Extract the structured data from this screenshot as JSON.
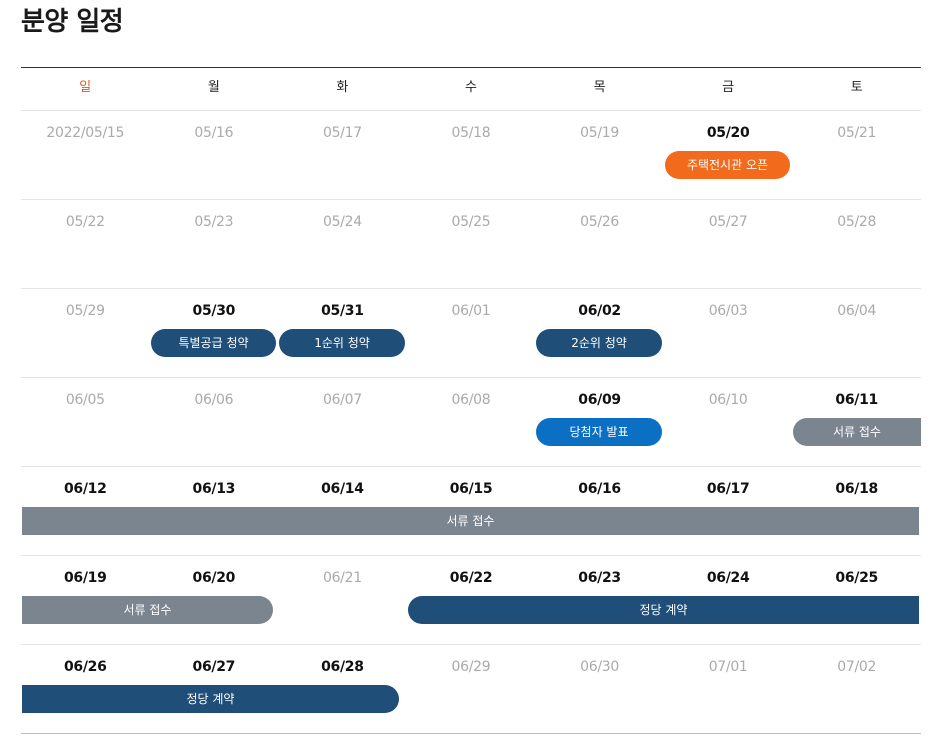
{
  "page_title": "분양 일정",
  "weekdays": [
    "일",
    "월",
    "화",
    "수",
    "목",
    "금",
    "토"
  ],
  "colors": {
    "sunday": "#e5541c",
    "orange": "#f26a1b",
    "navy": "#1f4e79",
    "blue": "#0b70c4",
    "gray": "#7b858f"
  },
  "weeks": [
    {
      "dates": [
        "2022/05/15",
        "05/16",
        "05/17",
        "05/18",
        "05/19",
        "05/20",
        "05/21"
      ],
      "active": [
        5
      ],
      "events": [
        {
          "label": "주택전시관 오픈",
          "color": "orange"
        }
      ]
    },
    {
      "dates": [
        "05/22",
        "05/23",
        "05/24",
        "05/25",
        "05/26",
        "05/27",
        "05/28"
      ],
      "active": [],
      "events": []
    },
    {
      "dates": [
        "05/29",
        "05/30",
        "05/31",
        "06/01",
        "06/02",
        "06/03",
        "06/04"
      ],
      "active": [
        1,
        2,
        4
      ],
      "events": [
        {
          "label": "특별공급 청약",
          "color": "navy"
        },
        {
          "label": "1순위 청약",
          "color": "navy"
        },
        {
          "label": "2순위 청약",
          "color": "navy"
        }
      ]
    },
    {
      "dates": [
        "06/05",
        "06/06",
        "06/07",
        "06/08",
        "06/09",
        "06/10",
        "06/11"
      ],
      "active": [
        4,
        6
      ],
      "events": [
        {
          "label": "당첨자 발표",
          "color": "blue"
        },
        {
          "label": "서류 접수",
          "color": "gray"
        }
      ]
    },
    {
      "dates": [
        "06/12",
        "06/13",
        "06/14",
        "06/15",
        "06/16",
        "06/17",
        "06/18"
      ],
      "active": [
        0,
        1,
        2,
        3,
        4,
        5,
        6
      ],
      "events": [
        {
          "label": "서류 접수",
          "color": "gray"
        }
      ]
    },
    {
      "dates": [
        "06/19",
        "06/20",
        "06/21",
        "06/22",
        "06/23",
        "06/24",
        "06/25"
      ],
      "active": [
        0,
        1,
        3,
        4,
        5,
        6
      ],
      "events": [
        {
          "label": "서류 접수",
          "color": "gray"
        },
        {
          "label": "정당 계약",
          "color": "navy"
        }
      ]
    },
    {
      "dates": [
        "06/26",
        "06/27",
        "06/28",
        "06/29",
        "06/30",
        "07/01",
        "07/02"
      ],
      "active": [
        0,
        1,
        2
      ],
      "events": [
        {
          "label": "정당 계약",
          "color": "navy"
        }
      ]
    }
  ]
}
